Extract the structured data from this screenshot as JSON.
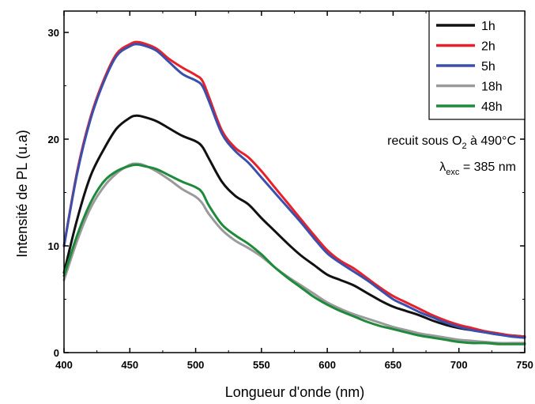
{
  "chart_data": {
    "type": "line",
    "title": "",
    "xlabel": "Longueur d'onde (nm)",
    "ylabel": "Intensité de PL (u.a)",
    "xlim": [
      400,
      750
    ],
    "ylim": [
      0,
      32
    ],
    "xticks": [
      400,
      450,
      500,
      550,
      600,
      650,
      700,
      750
    ],
    "yticks": [
      0,
      10,
      20,
      30
    ],
    "grid": false,
    "legend_position": "top-right",
    "annotations": {
      "line1_prefix": "recuit sous O",
      "line1_sub": "2",
      "line1_suffix": " à 490°C",
      "line2_symbol": "λ",
      "line2_sub": "exc",
      "line2_suffix": " = 385 nm"
    },
    "x": [
      400,
      410,
      420,
      430,
      440,
      450,
      455,
      460,
      470,
      480,
      490,
      500,
      505,
      510,
      520,
      530,
      540,
      550,
      560,
      570,
      580,
      590,
      600,
      610,
      620,
      630,
      640,
      650,
      660,
      670,
      680,
      690,
      700,
      710,
      720,
      730,
      740,
      750
    ],
    "series": [
      {
        "name": "1h",
        "color": "#111111",
        "values": [
          7.5,
          12.5,
          16.5,
          19.0,
          21.0,
          22.0,
          22.2,
          22.1,
          21.7,
          21.0,
          20.3,
          19.8,
          19.3,
          18.2,
          16.0,
          14.7,
          13.9,
          12.6,
          11.4,
          10.2,
          9.1,
          8.2,
          7.3,
          6.8,
          6.3,
          5.6,
          4.9,
          4.3,
          3.9,
          3.5,
          3.0,
          2.6,
          2.3,
          2.1,
          1.9,
          1.7,
          1.6,
          1.5
        ]
      },
      {
        "name": "2h",
        "color": "#e8202a",
        "values": [
          10.0,
          17.0,
          22.0,
          25.5,
          28.0,
          28.9,
          29.1,
          29.0,
          28.5,
          27.5,
          26.7,
          26.0,
          25.5,
          24.0,
          20.8,
          19.2,
          18.3,
          17.0,
          15.5,
          14.0,
          12.5,
          11.0,
          9.6,
          8.6,
          7.9,
          7.0,
          6.1,
          5.3,
          4.7,
          4.1,
          3.5,
          3.0,
          2.6,
          2.3,
          2.0,
          1.8,
          1.6,
          1.5
        ]
      },
      {
        "name": "5h",
        "color": "#3b4fad",
        "values": [
          10.0,
          16.8,
          21.8,
          25.3,
          27.8,
          28.7,
          28.9,
          28.8,
          28.3,
          27.2,
          26.1,
          25.5,
          25.0,
          23.6,
          20.5,
          18.9,
          17.8,
          16.4,
          15.0,
          13.6,
          12.2,
          10.7,
          9.3,
          8.4,
          7.6,
          6.8,
          5.9,
          5.0,
          4.4,
          3.8,
          3.3,
          2.8,
          2.4,
          2.1,
          1.9,
          1.7,
          1.5,
          1.4
        ]
      },
      {
        "name": "18h",
        "color": "#9a9a9a",
        "values": [
          6.8,
          10.5,
          13.5,
          15.5,
          16.8,
          17.6,
          17.7,
          17.6,
          17.0,
          16.2,
          15.3,
          14.6,
          14.0,
          13.0,
          11.5,
          10.5,
          9.8,
          9.0,
          8.0,
          7.1,
          6.3,
          5.5,
          4.7,
          4.1,
          3.6,
          3.2,
          2.8,
          2.4,
          2.1,
          1.8,
          1.6,
          1.4,
          1.2,
          1.1,
          1.0,
          0.9,
          0.9,
          0.9
        ]
      },
      {
        "name": "48h",
        "color": "#1f8a3c",
        "values": [
          7.2,
          11.0,
          14.0,
          16.0,
          17.0,
          17.5,
          17.6,
          17.5,
          17.2,
          16.6,
          16.0,
          15.5,
          15.0,
          13.8,
          12.0,
          11.0,
          10.2,
          9.2,
          8.0,
          7.0,
          6.1,
          5.2,
          4.5,
          3.9,
          3.4,
          2.9,
          2.5,
          2.2,
          1.9,
          1.6,
          1.4,
          1.2,
          1.0,
          0.9,
          0.9,
          0.8,
          0.8,
          0.8
        ]
      }
    ]
  }
}
